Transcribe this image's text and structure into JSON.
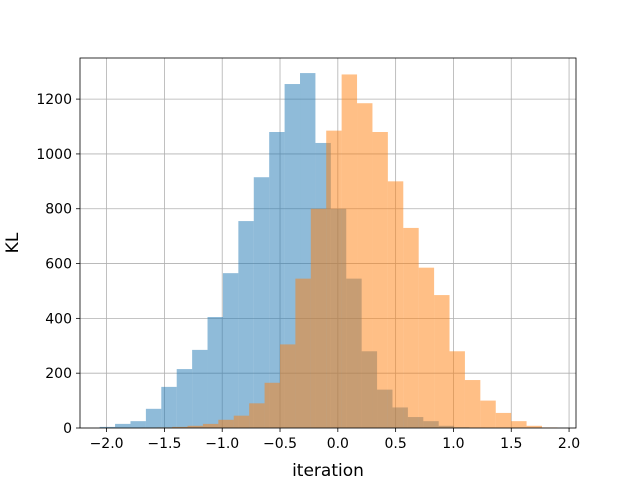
{
  "chart_data": {
    "type": "bar",
    "title": "",
    "xlabel": "iteration",
    "ylabel": "KL",
    "xlim": [
      -2.23,
      2.06
    ],
    "ylim": [
      0,
      1350
    ],
    "xticks": [
      -2.0,
      -1.5,
      -1.0,
      -0.5,
      0.0,
      0.5,
      1.0,
      1.5,
      2.0
    ],
    "xtick_labels": [
      "−2.0",
      "−1.5",
      "−1.0",
      "−0.5",
      "0.0",
      "0.5",
      "1.0",
      "1.5",
      "2.0"
    ],
    "yticks": [
      0,
      200,
      400,
      600,
      800,
      1000,
      1200
    ],
    "ytick_labels": [
      "0",
      "200",
      "400",
      "600",
      "800",
      "1000",
      "1200"
    ],
    "grid": true,
    "series": [
      {
        "color": "#1f77b4",
        "opacity": 0.5,
        "bin_start": -2.06,
        "bin_width": 0.1333,
        "values": [
          4,
          15,
          25,
          70,
          150,
          215,
          285,
          405,
          565,
          755,
          915,
          1080,
          1255,
          1295,
          1040,
          800,
          545,
          280,
          140,
          75,
          40,
          25,
          8,
          3,
          1,
          0,
          0
        ]
      },
      {
        "color": "#ff7f0e",
        "opacity": 0.5,
        "bin_start": -1.7,
        "bin_width": 0.1333,
        "values": [
          1,
          2,
          4,
          8,
          15,
          30,
          45,
          90,
          165,
          305,
          545,
          800,
          1085,
          1290,
          1185,
          1080,
          900,
          730,
          585,
          485,
          280,
          175,
          100,
          55,
          25,
          8,
          2
        ]
      }
    ]
  }
}
